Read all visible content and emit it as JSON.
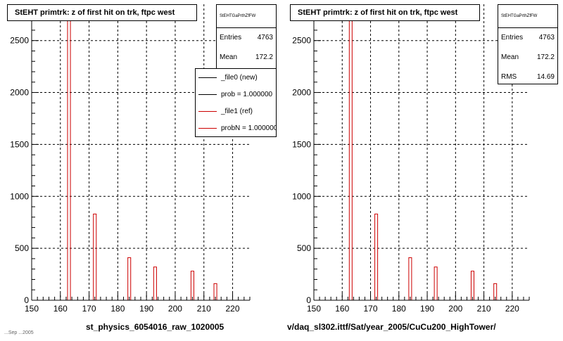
{
  "colors": {
    "hist": "#cc0000",
    "ref": "#cc0000",
    "new": "#000000",
    "grid": "#000000"
  },
  "footnote": "...Sep ...2005",
  "chart_data": [
    {
      "type": "bar",
      "title": "StEHT primtrk: z of first hit on trk, ftpc west",
      "xlabel": "st_physics_6054016_raw_1020005",
      "ylabel": "",
      "xlim": [
        150,
        226
      ],
      "ylim": [
        0,
        2850
      ],
      "grid": true,
      "x_ticks": [
        150,
        160,
        170,
        180,
        190,
        200,
        210,
        220
      ],
      "y_ticks": [
        0,
        500,
        1000,
        1500,
        2000,
        2500
      ],
      "bars": [
        {
          "x": 163,
          "value": 2740
        },
        {
          "x": 172,
          "value": 830
        },
        {
          "x": 184,
          "value": 410
        },
        {
          "x": 193,
          "value": 320
        },
        {
          "x": 206,
          "value": 280
        },
        {
          "x": 214,
          "value": 160
        }
      ],
      "stats": {
        "name": "StEHTGaPrthZfFW",
        "rows": [
          {
            "label": "Entries",
            "value": "4763"
          },
          {
            "label": "Mean",
            "value": "172.2"
          }
        ]
      },
      "legend": [
        {
          "label": "_file0 (new)",
          "color": "#000000"
        },
        {
          "label": "prob = 1.000000",
          "color": "#000000"
        },
        {
          "label": "_file1 (ref)",
          "color": "#cc0000"
        },
        {
          "label": "probN = 1.000000",
          "color": "#cc0000"
        }
      ]
    },
    {
      "type": "bar",
      "title": "StEHT primtrk: z of first hit on trk, ftpc west",
      "xlabel": "v/daq_sl302.ittf/Sat/year_2005/CuCu200_HighTower/",
      "ylabel": "",
      "xlim": [
        150,
        226
      ],
      "ylim": [
        0,
        2850
      ],
      "grid": true,
      "x_ticks": [
        150,
        160,
        170,
        180,
        190,
        200,
        210,
        220
      ],
      "y_ticks": [
        0,
        500,
        1000,
        1500,
        2000,
        2500
      ],
      "bars": [
        {
          "x": 163,
          "value": 2740
        },
        {
          "x": 172,
          "value": 830
        },
        {
          "x": 184,
          "value": 410
        },
        {
          "x": 193,
          "value": 320
        },
        {
          "x": 206,
          "value": 280
        },
        {
          "x": 214,
          "value": 160
        }
      ],
      "stats": {
        "name": "StEHTGaPrthZfFW",
        "rows": [
          {
            "label": "Entries",
            "value": "4763"
          },
          {
            "label": "Mean",
            "value": "172.2"
          },
          {
            "label": "RMS",
            "value": "14.69"
          }
        ]
      }
    }
  ]
}
